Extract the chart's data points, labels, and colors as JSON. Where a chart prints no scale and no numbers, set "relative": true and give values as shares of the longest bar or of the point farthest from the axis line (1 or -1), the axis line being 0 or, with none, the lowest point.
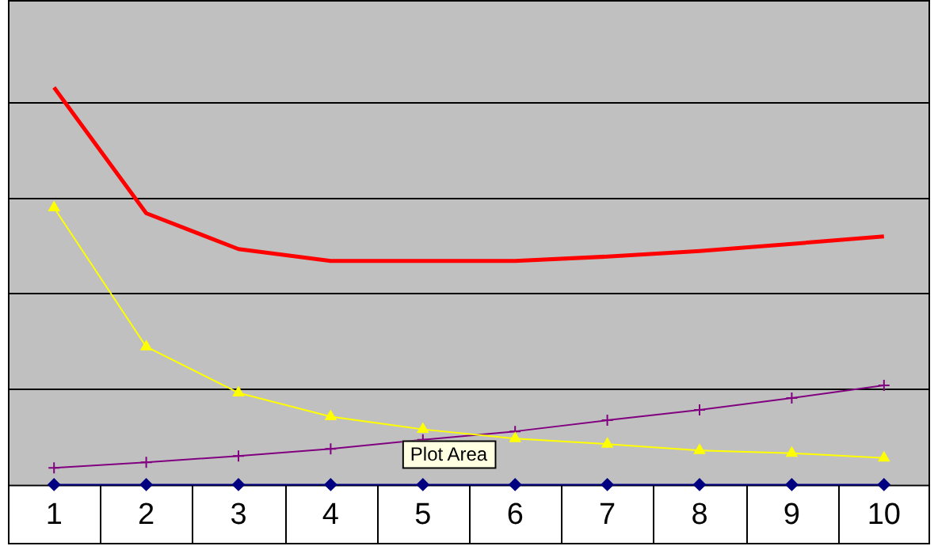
{
  "chart_data": {
    "type": "line",
    "relative": true,
    "categories": [
      "1",
      "2",
      "3",
      "4",
      "5",
      "6",
      "7",
      "8",
      "9",
      "10"
    ],
    "series": [
      {
        "color": "#ff0000",
        "marker": "none",
        "values": [
          1,
          0.683,
          0.593,
          0.563,
          0.563,
          0.563,
          0.574,
          0.588,
          0.606,
          0.625
        ]
      },
      {
        "color": "#ffff00",
        "marker": "triangle",
        "values": [
          0.697,
          0.347,
          0.231,
          0.171,
          0.139,
          0.116,
          0.102,
          0.086,
          0.079,
          0.067
        ]
      },
      {
        "color": "#800080",
        "marker": "cross",
        "values": [
          0.042,
          0.056,
          0.072,
          0.09,
          0.113,
          0.134,
          0.162,
          0.188,
          0.218,
          0.25
        ]
      },
      {
        "color": "#000080",
        "marker": "diamond",
        "values": [
          0,
          0,
          0,
          0,
          0,
          0,
          0,
          0,
          0,
          0
        ]
      }
    ],
    "grid": "y",
    "legend": false,
    "annotations": [
      "Plot Area"
    ]
  }
}
